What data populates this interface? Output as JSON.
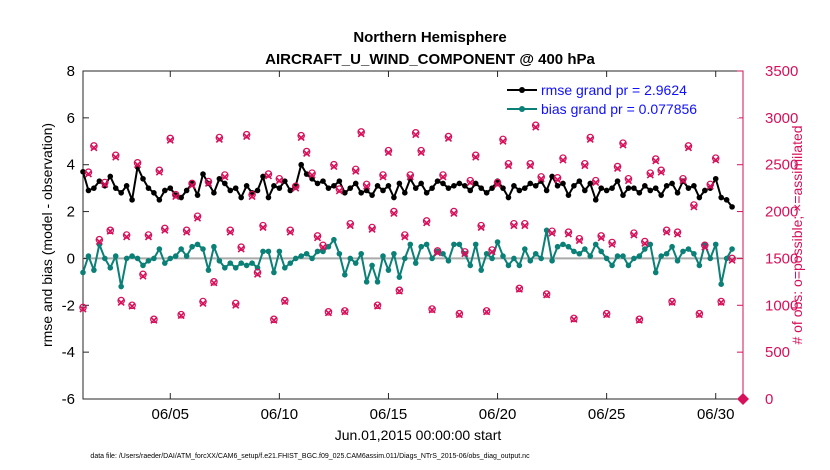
{
  "chart_data": {
    "type": "line",
    "title": "Northern Hemisphere",
    "subtitle": "AIRCRAFT_U_WIND_COMPONENT @ 400 hPa",
    "xlabel": "Jun.01,2015 00:00:00 start",
    "ylabel": "rmse and bias (model - observation)",
    "y2label": "# of obs: o=possible; ×=assimilated",
    "footer": "data file: /Users/raeder/DAI/ATM_forcXX/CAM6_setup/f.e21.FHIST_BGC.f09_025.CAM6assim.011/Diags_NTrS_2015-06/obs_diag_output.nc",
    "xlim": [
      1.0,
      31.25
    ],
    "ylim": [
      -6,
      8
    ],
    "y2lim": [
      0,
      3500
    ],
    "xticks": [
      5,
      10,
      15,
      20,
      25,
      30
    ],
    "xtick_labels": [
      "06/05",
      "06/10",
      "06/15",
      "06/20",
      "06/25",
      "06/30"
    ],
    "yticks": [
      -6,
      -4,
      -2,
      0,
      2,
      4,
      6,
      8
    ],
    "y2ticks": [
      0,
      500,
      1000,
      1500,
      2000,
      2500,
      3000,
      3500
    ],
    "grid": false,
    "legend_position": "top-right",
    "x": [
      1.0,
      1.25,
      1.5,
      1.75,
      2.0,
      2.25,
      2.5,
      2.75,
      3.0,
      3.25,
      3.5,
      3.75,
      4.0,
      4.25,
      4.5,
      4.75,
      5.0,
      5.25,
      5.5,
      5.75,
      6.0,
      6.25,
      6.5,
      6.75,
      7.0,
      7.25,
      7.5,
      7.75,
      8.0,
      8.25,
      8.5,
      8.75,
      9.0,
      9.25,
      9.5,
      9.75,
      10.0,
      10.25,
      10.5,
      10.75,
      11.0,
      11.25,
      11.5,
      11.75,
      12.0,
      12.25,
      12.5,
      12.75,
      13.0,
      13.25,
      13.5,
      13.75,
      14.0,
      14.25,
      14.5,
      14.75,
      15.0,
      15.25,
      15.5,
      15.75,
      16.0,
      16.25,
      16.5,
      16.75,
      17.0,
      17.25,
      17.5,
      17.75,
      18.0,
      18.25,
      18.5,
      18.75,
      19.0,
      19.25,
      19.5,
      19.75,
      20.0,
      20.25,
      20.5,
      20.75,
      21.0,
      21.25,
      21.5,
      21.75,
      22.0,
      22.25,
      22.5,
      22.75,
      23.0,
      23.25,
      23.5,
      23.75,
      24.0,
      24.25,
      24.5,
      24.75,
      25.0,
      25.25,
      25.5,
      25.75,
      26.0,
      26.25,
      26.5,
      26.75,
      27.0,
      27.25,
      27.5,
      27.75,
      28.0,
      28.25,
      28.5,
      28.75,
      29.0,
      29.25,
      29.5,
      29.75,
      30.0,
      30.25,
      30.5,
      30.75
    ],
    "series": [
      {
        "name": "rmse",
        "legend": "rmse grand pr = 2.9624",
        "color": "#000000",
        "axis": "left",
        "values": [
          3.7,
          2.9,
          3.0,
          3.3,
          3.1,
          3.5,
          3.0,
          2.8,
          3.1,
          2.5,
          3.9,
          3.4,
          3.0,
          2.8,
          2.5,
          2.9,
          3.0,
          2.7,
          2.6,
          2.9,
          3.2,
          2.7,
          3.6,
          3.2,
          2.8,
          3.4,
          3.2,
          2.9,
          3.0,
          2.6,
          3.1,
          2.8,
          2.9,
          3.5,
          2.6,
          3.1,
          3.0,
          3.3,
          2.9,
          3.1,
          4.0,
          3.6,
          3.4,
          3.2,
          3.3,
          3.0,
          3.1,
          3.3,
          2.8,
          3.0,
          3.2,
          2.8,
          2.9,
          2.7,
          3.1,
          2.9,
          3.1,
          2.6,
          3.2,
          2.8,
          3.4,
          3.0,
          3.2,
          2.8,
          3.0,
          3.3,
          3.2,
          3.0,
          3.1,
          3.2,
          3.1,
          2.9,
          3.2,
          3.0,
          2.8,
          3.0,
          3.3,
          3.0,
          2.6,
          3.1,
          2.9,
          3.0,
          3.2,
          3.1,
          3.3,
          2.9,
          3.5,
          3.1,
          3.2,
          2.7,
          3.1,
          3.3,
          2.9,
          3.2,
          2.5,
          3.0,
          2.9,
          3.0,
          3.3,
          2.7,
          3.0,
          3.0,
          2.8,
          3.1,
          2.9,
          3.0,
          2.7,
          3.1,
          3.2,
          2.8,
          3.3,
          3.0,
          3.1,
          2.6,
          2.9,
          3.0,
          3.4,
          2.6,
          2.5,
          2.2
        ]
      },
      {
        "name": "bias",
        "legend": "bias grand pr = 0.077856",
        "color": "#0a8077",
        "axis": "left",
        "values": [
          -0.6,
          0.1,
          -0.5,
          0.6,
          0.0,
          -0.4,
          0.1,
          -1.2,
          0.0,
          0.1,
          0.0,
          -0.3,
          -0.1,
          0.0,
          0.4,
          -0.2,
          0.0,
          0.1,
          0.4,
          0.1,
          0.5,
          0.6,
          0.4,
          -0.5,
          0.5,
          -0.1,
          -0.4,
          -0.2,
          -0.4,
          -0.2,
          -0.3,
          -0.2,
          -0.4,
          0.3,
          0.3,
          -0.6,
          0.3,
          -0.4,
          -0.2,
          0.0,
          0.1,
          0.2,
          0.0,
          0.3,
          0.3,
          0.5,
          0.8,
          0.2,
          -0.7,
          0.0,
          -0.2,
          0.2,
          -1.0,
          -0.3,
          -1.0,
          0.1,
          -0.5,
          0.2,
          -0.8,
          0.0,
          0.6,
          -0.2,
          0.5,
          0.6,
          0.0,
          0.3,
          0.2,
          -0.1,
          0.6,
          0.6,
          0.2,
          -0.3,
          0.6,
          -0.5,
          0.2,
          0.0,
          0.7,
          0.1,
          -0.3,
          0.0,
          -0.3,
          0.4,
          -0.1,
          0.2,
          0.0,
          1.2,
          -0.1,
          0.5,
          0.6,
          0.5,
          0.3,
          0.2,
          0.4,
          0.1,
          0.6,
          0.3,
          0.0,
          -0.3,
          0.1,
          0.1,
          -0.3,
          0.0,
          0.1,
          0.4,
          0.6,
          -0.6,
          0.1,
          0.2,
          0.5,
          -0.1,
          0.3,
          0.4,
          0.2,
          -0.3,
          0.6,
          0.0,
          0.6,
          -1.1,
          0.0,
          0.4
        ]
      },
      {
        "name": "possible",
        "marker": "o",
        "color": "#d6105a",
        "axis": "right",
        "values": [
          977,
          2420,
          2700,
          1700,
          2310,
          1800,
          2600,
          1050,
          1750,
          1000,
          2520,
          1330,
          1750,
          850,
          2440,
          1820,
          2780,
          2180,
          900,
          1800,
          2300,
          1950,
          1040,
          2320,
          1250,
          2790,
          2390,
          1800,
          1020,
          1620,
          2820,
          2180,
          1350,
          1850,
          2400,
          850,
          2350,
          1050,
          1800,
          2270,
          2810,
          2640,
          2410,
          1740,
          1640,
          930,
          2500,
          2240,
          940,
          1870,
          2450,
          2850,
          2290,
          1830,
          1000,
          2390,
          2650,
          2000,
          1160,
          1750,
          2390,
          2840,
          2650,
          1900,
          960,
          1580,
          2390,
          2800,
          2000,
          910,
          1570,
          2330,
          2600,
          1850,
          940,
          1590,
          2310,
          2770,
          2510,
          1870,
          1180,
          1870,
          2510,
          2920,
          2370,
          1120,
          1790,
          2360,
          2570,
          1780,
          860,
          1710,
          2510,
          2790,
          2330,
          1740,
          910,
          1670,
          2480,
          2730,
          2350,
          1770,
          850,
          1680,
          2410,
          2560,
          2440,
          1800,
          1040,
          1780,
          2350,
          2700,
          2070,
          910,
          1640,
          2290,
          2570,
          1040,
          3150,
          1500
        ]
      },
      {
        "name": "assimilated",
        "marker": "x",
        "color": "#d6105a",
        "axis": "right",
        "values": [
          960,
          2400,
          2680,
          1680,
          2290,
          1790,
          2580,
          1030,
          1730,
          990,
          2500,
          1310,
          1730,
          840,
          2420,
          1800,
          2760,
          2160,
          890,
          1780,
          2280,
          1930,
          1020,
          2300,
          1240,
          2770,
          2370,
          1780,
          1000,
          1600,
          2800,
          2160,
          1330,
          1830,
          2380,
          840,
          2330,
          1040,
          1780,
          2250,
          2790,
          2620,
          2390,
          1720,
          1620,
          920,
          2480,
          2220,
          930,
          1850,
          2430,
          2830,
          2270,
          1810,
          990,
          2370,
          2630,
          1980,
          1150,
          1730,
          2370,
          2820,
          2630,
          1880,
          950,
          1560,
          2370,
          2780,
          1980,
          900,
          1550,
          2310,
          2580,
          1830,
          930,
          1570,
          2290,
          2750,
          2490,
          1850,
          1170,
          1850,
          2490,
          2900,
          2350,
          1110,
          1770,
          2340,
          2550,
          1760,
          850,
          1690,
          2490,
          2770,
          2310,
          1720,
          900,
          1650,
          2460,
          2710,
          2330,
          1750,
          840,
          1660,
          2390,
          2540,
          2420,
          1780,
          1030,
          1760,
          2330,
          2680,
          2050,
          900,
          1620,
          2270,
          2550,
          1030,
          3130,
          1480
        ]
      }
    ],
    "special_marks": {
      "right_axis_zero_marker_x": 31.25,
      "right_axis_zero_marker_value": 0
    }
  }
}
